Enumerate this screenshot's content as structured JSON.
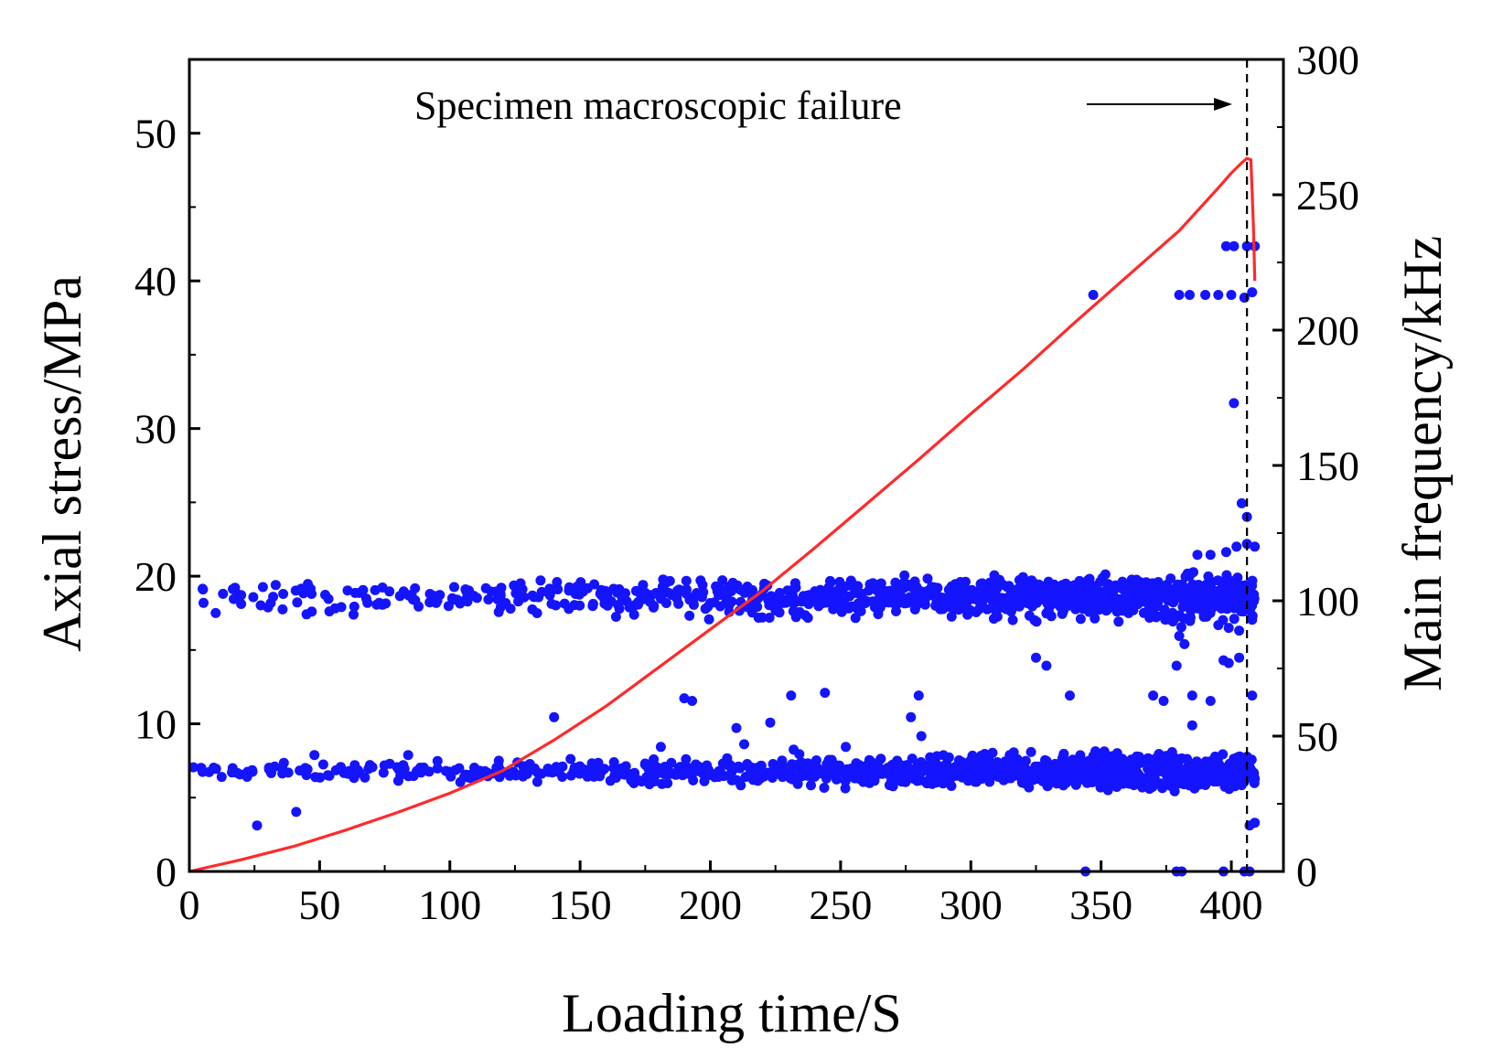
{
  "chart_data": {
    "type": "scatter",
    "xlabel": "Loading time/S",
    "ylabel_left": "Axial stress/MPa",
    "ylabel_right": "Main frequency/kHz",
    "xlim": [
      0,
      420
    ],
    "ylim_left": [
      0,
      55
    ],
    "ylim_right": [
      0,
      300
    ],
    "x_ticks": [
      0,
      50,
      100,
      150,
      200,
      250,
      300,
      350,
      400
    ],
    "y_ticks_left": [
      0,
      10,
      20,
      30,
      40,
      50
    ],
    "y_ticks_right": [
      0,
      50,
      100,
      150,
      200,
      250,
      300
    ],
    "failure_time": 406,
    "annotation": "Specimen macroscopic failure",
    "colors": {
      "stress_line": "#ff2a2a",
      "frequency_points": "#1414ff",
      "axes": "#000000"
    },
    "stress_curve": [
      [
        0,
        0
      ],
      [
        20,
        0.8
      ],
      [
        40,
        1.7
      ],
      [
        60,
        2.8
      ],
      [
        80,
        4.0
      ],
      [
        100,
        5.3
      ],
      [
        120,
        6.8
      ],
      [
        140,
        8.9
      ],
      [
        160,
        11.2
      ],
      [
        180,
        13.8
      ],
      [
        200,
        16.4
      ],
      [
        220,
        19.0
      ],
      [
        240,
        21.9
      ],
      [
        260,
        24.9
      ],
      [
        280,
        27.9
      ],
      [
        300,
        31.0
      ],
      [
        320,
        34.0
      ],
      [
        340,
        37.2
      ],
      [
        360,
        40.3
      ],
      [
        380,
        43.4
      ],
      [
        395,
        46.3
      ],
      [
        400,
        47.3
      ],
      [
        404,
        48.0
      ],
      [
        406,
        48.3
      ],
      [
        407.5,
        48.2
      ],
      [
        408,
        46.0
      ],
      [
        408.5,
        43.5
      ],
      [
        409,
        40.0
      ]
    ],
    "frequency_bands": [
      {
        "name": "low band",
        "center_khz": 37,
        "spread_khz": 3,
        "x_range": [
          0,
          409
        ],
        "density": "increasing"
      },
      {
        "name": "middle band",
        "center_khz": 103,
        "spread_khz": 3,
        "x_range": [
          5,
          409
        ],
        "density": "increasing"
      }
    ],
    "frequency_points": [
      [
        26,
        17
      ],
      [
        41,
        22
      ],
      [
        47,
        96
      ],
      [
        45,
        95
      ],
      [
        48,
        43
      ],
      [
        84,
        43
      ],
      [
        140,
        57
      ],
      [
        181,
        46
      ],
      [
        190,
        64
      ],
      [
        193,
        63
      ],
      [
        210,
        53
      ],
      [
        223,
        55
      ],
      [
        213,
        47
      ],
      [
        231,
        65
      ],
      [
        244,
        66
      ],
      [
        252,
        46
      ],
      [
        232,
        45
      ],
      [
        277,
        57
      ],
      [
        280,
        65
      ],
      [
        281,
        50
      ],
      [
        325,
        79
      ],
      [
        329,
        76
      ],
      [
        338,
        65
      ],
      [
        347,
        213
      ],
      [
        370,
        65
      ],
      [
        374,
        63
      ],
      [
        380,
        87
      ],
      [
        382,
        84
      ],
      [
        385,
        65
      ],
      [
        385,
        54
      ],
      [
        379,
        76
      ],
      [
        392,
        63
      ],
      [
        397,
        78
      ],
      [
        399,
        77
      ],
      [
        401,
        173
      ],
      [
        403,
        79
      ],
      [
        404,
        136
      ],
      [
        406,
        131
      ],
      [
        408,
        65
      ],
      [
        407,
        17
      ],
      [
        409,
        18
      ],
      [
        344,
        0
      ],
      [
        379,
        0
      ],
      [
        381,
        0
      ],
      [
        397,
        0
      ],
      [
        405,
        0
      ],
      [
        407,
        0
      ],
      [
        380,
        213
      ],
      [
        384,
        213
      ],
      [
        390,
        213
      ],
      [
        395,
        213
      ],
      [
        400,
        213
      ],
      [
        405,
        212
      ],
      [
        408,
        214
      ],
      [
        398,
        231
      ],
      [
        401,
        231
      ],
      [
        406,
        231
      ],
      [
        409,
        231
      ],
      [
        387,
        117
      ],
      [
        392,
        117
      ],
      [
        398,
        118
      ],
      [
        402,
        120
      ],
      [
        406,
        121
      ],
      [
        409,
        120
      ],
      [
        395,
        91
      ],
      [
        399,
        90
      ],
      [
        403,
        89
      ],
      [
        408,
        93
      ]
    ]
  }
}
